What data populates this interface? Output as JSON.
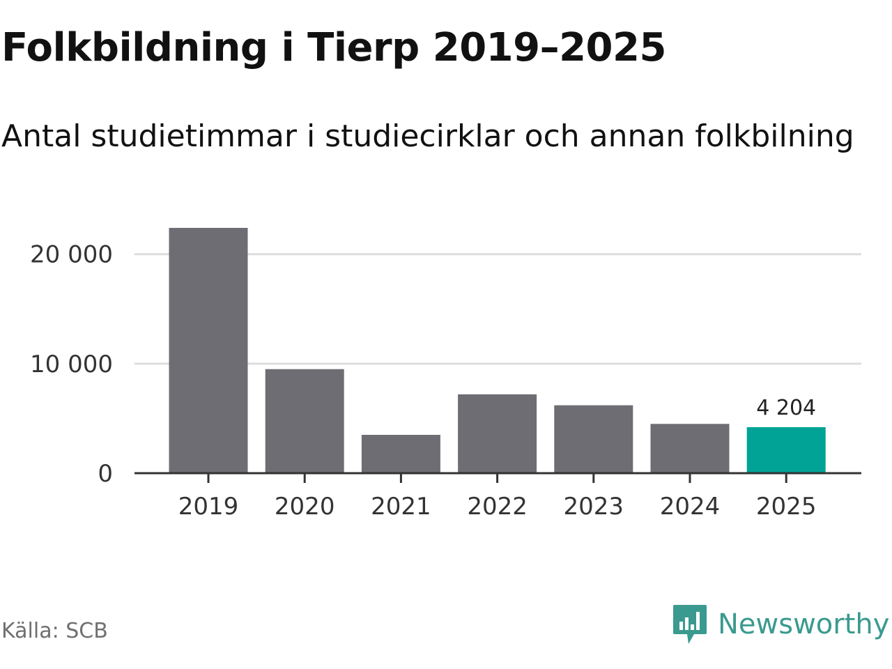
{
  "title": "Folkbildning i Tierp 2019–2025",
  "subtitle": "Antal studietimmar i studiecirklar och annan folkbilning",
  "source": "Källa: SCB",
  "brand": {
    "name": "Newsworthy",
    "icon": "newsworthy-logo-icon",
    "color": "#3a9a8f"
  },
  "colors": {
    "bar": "#6e6d73",
    "highlight": "#00a396",
    "grid": "#dddddd",
    "axis": "#333333"
  },
  "chart_data": {
    "type": "bar",
    "categories": [
      "2019",
      "2020",
      "2021",
      "2022",
      "2023",
      "2024",
      "2025"
    ],
    "values": [
      22400,
      9500,
      3500,
      7200,
      6200,
      4500,
      4204
    ],
    "highlight_index": 6,
    "data_labels": [
      {
        "index": 6,
        "text": "4 204"
      }
    ],
    "yticks": [
      {
        "value": 0,
        "label": "0"
      },
      {
        "value": 10000,
        "label": "10 000"
      },
      {
        "value": 20000,
        "label": "20 000"
      }
    ],
    "ylim": [
      0,
      22400
    ],
    "grid": true,
    "title": "Folkbildning i Tierp 2019–2025",
    "subtitle": "Antal studietimmar i studiecirklar och annan folkbilning",
    "xlabel": "",
    "ylabel": ""
  }
}
